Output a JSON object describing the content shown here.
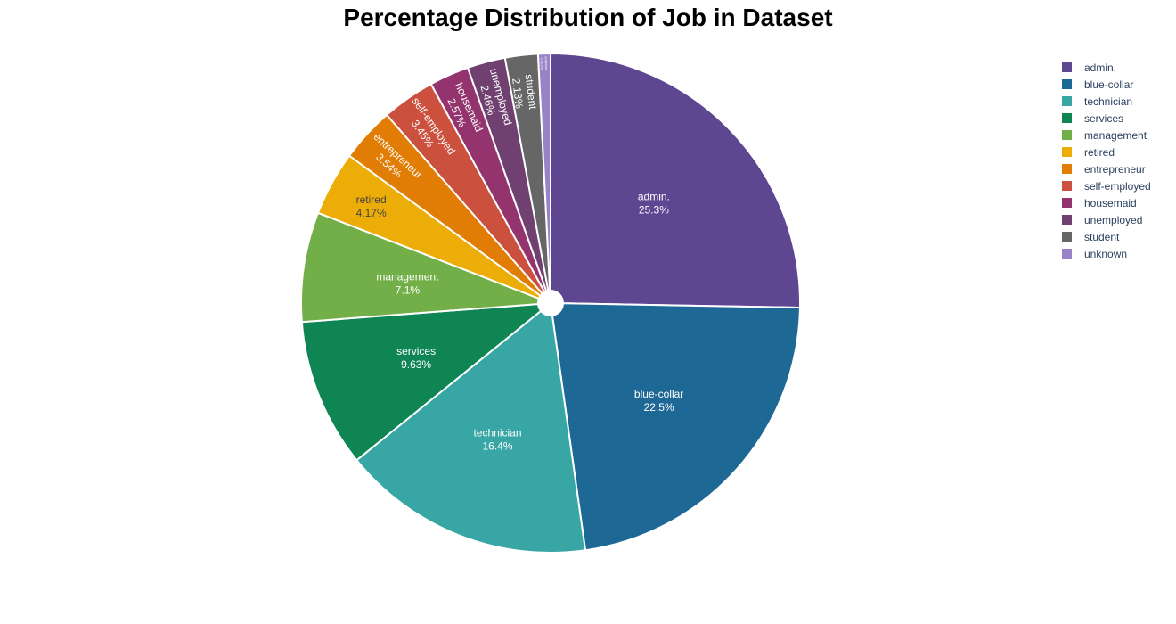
{
  "chart_data": {
    "type": "pie",
    "title": "Percentage Distribution of Job in Dataset",
    "hole": true,
    "legend_position": "top-right",
    "slices": [
      {
        "label": "admin.",
        "percent": 25.3,
        "display": "25.3%",
        "color": "#5e4690"
      },
      {
        "label": "blue-collar",
        "percent": 22.5,
        "display": "22.5%",
        "color": "#1d6895"
      },
      {
        "label": "technician",
        "percent": 16.4,
        "display": "16.4%",
        "color": "#38a6a5"
      },
      {
        "label": "services",
        "percent": 9.63,
        "display": "9.63%",
        "color": "#0f8554"
      },
      {
        "label": "management",
        "percent": 7.1,
        "display": "7.1%",
        "color": "#73af48"
      },
      {
        "label": "retired",
        "percent": 4.17,
        "display": "4.17%",
        "color": "#edad08"
      },
      {
        "label": "entrepreneur",
        "percent": 3.54,
        "display": "3.54%",
        "color": "#e17c05"
      },
      {
        "label": "self-employed",
        "percent": 3.45,
        "display": "3.45%",
        "color": "#cc503e"
      },
      {
        "label": "housemaid",
        "percent": 2.57,
        "display": "2.57%",
        "color": "#94346e"
      },
      {
        "label": "unemployed",
        "percent": 2.46,
        "display": "2.46%",
        "color": "#6f4070"
      },
      {
        "label": "student",
        "percent": 2.13,
        "display": "2.13%",
        "color": "#666666"
      },
      {
        "label": "unknown",
        "percent": 0.802,
        "display": "0.802%",
        "color": "#9882c8"
      }
    ]
  }
}
